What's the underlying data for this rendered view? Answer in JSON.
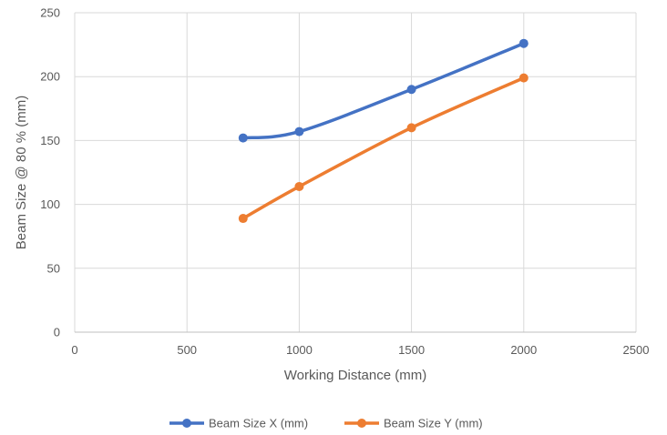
{
  "chart_data": {
    "type": "line",
    "xlabel": "Working Distance (mm)",
    "ylabel": "Beam Size @ 80 % (mm)",
    "xlim": [
      0,
      2500
    ],
    "ylim": [
      0,
      250
    ],
    "x_ticks": [
      "0",
      "500",
      "1000",
      "1500",
      "2000",
      "2500"
    ],
    "y_ticks": [
      "0",
      "50",
      "100",
      "150",
      "200",
      "250"
    ],
    "grid": true,
    "legend_position": "bottom",
    "series": [
      {
        "name": "Beam Size X (mm)",
        "color": "#4472C4",
        "x": [
          750,
          1000,
          1500,
          2000
        ],
        "values": [
          152,
          157,
          190,
          226
        ]
      },
      {
        "name": "Beam Size Y (mm)",
        "color": "#ED7D31",
        "x": [
          750,
          1000,
          1500,
          2000
        ],
        "values": [
          89,
          114,
          160,
          199
        ]
      }
    ]
  }
}
